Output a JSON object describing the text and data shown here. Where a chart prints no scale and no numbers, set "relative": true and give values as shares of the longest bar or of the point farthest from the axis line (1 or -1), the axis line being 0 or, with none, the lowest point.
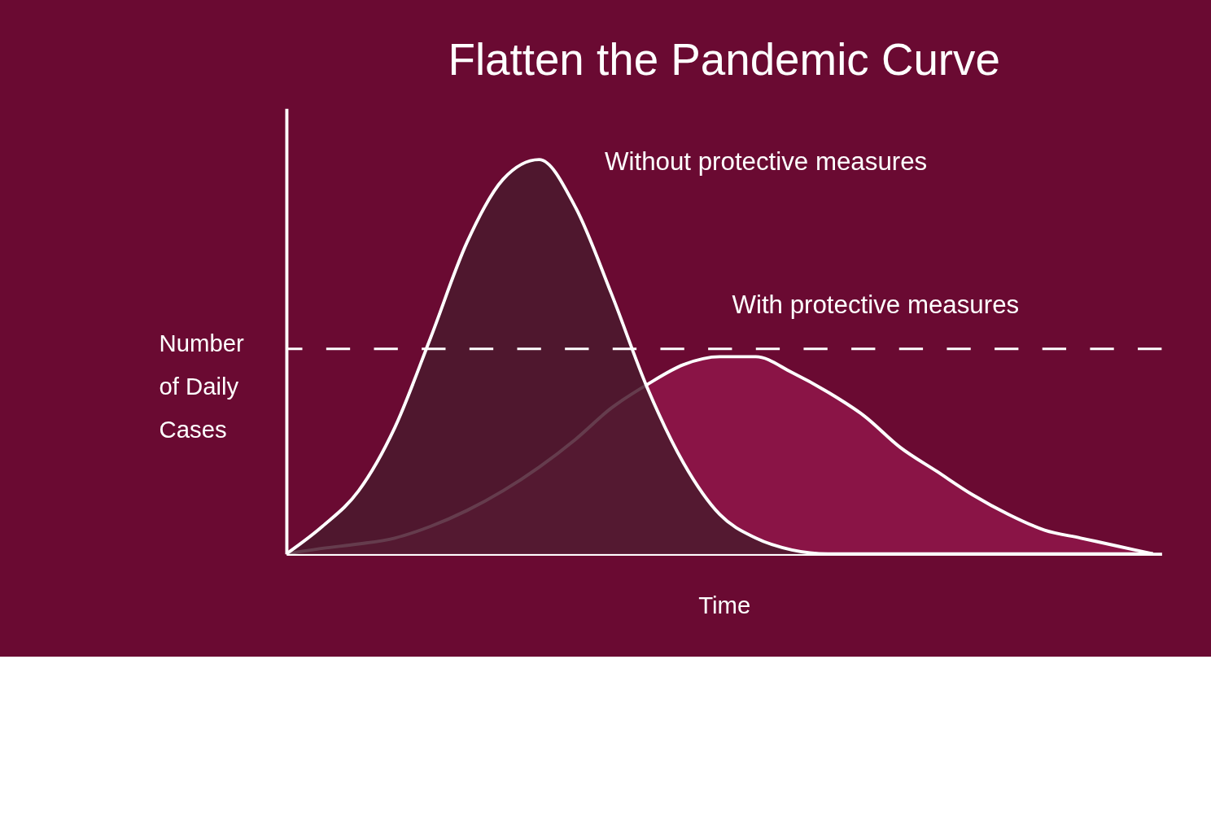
{
  "chart_data": {
    "type": "area",
    "title": "Flatten the Pandemic Curve",
    "xlabel": "Time",
    "ylabel": "Number of Daily Cases",
    "relative": true,
    "grid": false,
    "categories": [
      null,
      null,
      null,
      null,
      null,
      null,
      null,
      null,
      null,
      null,
      null,
      null,
      null,
      null,
      null,
      null,
      null,
      null,
      null,
      null,
      null,
      null,
      null,
      null,
      null
    ],
    "series": [
      {
        "name": "With protective measures",
        "color": "#8a1446",
        "values": [
          0,
          0.014,
          0.025,
          0.04,
          0.07,
          0.11,
          0.16,
          0.22,
          0.29,
          0.37,
          0.43,
          0.48,
          0.5,
          0.5,
          0.46,
          0.41,
          0.35,
          0.27,
          0.21,
          0.15,
          0.1,
          0.06,
          0.04,
          0.02,
          0
        ]
      },
      {
        "name": "Without protective measures",
        "color": "#4a1a2e",
        "values": [
          0,
          0.07,
          0.16,
          0.32,
          0.55,
          0.79,
          0.95,
          1,
          0.88,
          0.66,
          0.42,
          0.23,
          0.1,
          0.04,
          0.01,
          0,
          0,
          0,
          0,
          0,
          0,
          0,
          0,
          0,
          0
        ]
      }
    ],
    "ref_lines": [
      {
        "axis": "y",
        "value": 0.52,
        "line_style": "dashed",
        "color": "#ffffff"
      }
    ]
  }
}
